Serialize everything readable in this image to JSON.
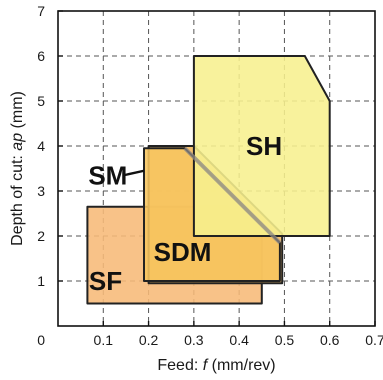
{
  "chart_data": {
    "type": "area",
    "title": "",
    "xlabel": "Feed: f (mm/rev)",
    "xlabel_prefix": "Feed: ",
    "xlabel_var": "f",
    "xlabel_suffix": " (mm/rev)",
    "ylabel": "Depth of cut: ap (mm)",
    "ylabel_prefix": "Depth of cut: ",
    "ylabel_var": "ap",
    "ylabel_suffix": " (mm)",
    "xlim": [
      0,
      0.7
    ],
    "ylim": [
      0,
      7
    ],
    "xticks": [
      "0.1",
      "0.2",
      "0.3",
      "0.4",
      "0.5",
      "0.6",
      "0.7"
    ],
    "yticks": [
      "1",
      "2",
      "3",
      "4",
      "5",
      "6",
      "7"
    ],
    "origin_label": "0",
    "grid": true,
    "regions": [
      {
        "name": "SF",
        "color": "#F7B978",
        "polygon": [
          [
            0.065,
            0.5
          ],
          [
            0.45,
            0.5
          ],
          [
            0.45,
            2.2
          ],
          [
            0.375,
            2.65
          ],
          [
            0.065,
            2.65
          ]
        ]
      },
      {
        "name": "SDM",
        "color": "#F4B75C",
        "polygon": [
          [
            0.2,
            0.95
          ],
          [
            0.495,
            0.95
          ],
          [
            0.495,
            2.05
          ],
          [
            0.3,
            4.0
          ],
          [
            0.2,
            4.0
          ]
        ]
      },
      {
        "name": "SM",
        "color": "#F7C55F",
        "polygon": [
          [
            0.19,
            1.0
          ],
          [
            0.49,
            1.0
          ],
          [
            0.49,
            1.85
          ],
          [
            0.28,
            3.95
          ],
          [
            0.19,
            3.95
          ]
        ]
      },
      {
        "name": "SH",
        "color": "#F7F08E",
        "polygon": [
          [
            0.3,
            2.0
          ],
          [
            0.6,
            2.0
          ],
          [
            0.6,
            5.0
          ],
          [
            0.545,
            6.0
          ],
          [
            0.3,
            6.0
          ]
        ]
      }
    ],
    "labels": [
      {
        "text": "SH",
        "x": 0.455,
        "y": 4.0
      },
      {
        "text": "SDM",
        "x": 0.275,
        "y": 1.65
      },
      {
        "text": "SF",
        "x": 0.105,
        "y": 1.0
      },
      {
        "text": "SM",
        "x": 0.11,
        "y": 3.35
      }
    ],
    "sm_pointer": [
      [
        0.145,
        3.35
      ],
      [
        0.19,
        3.45
      ]
    ]
  }
}
